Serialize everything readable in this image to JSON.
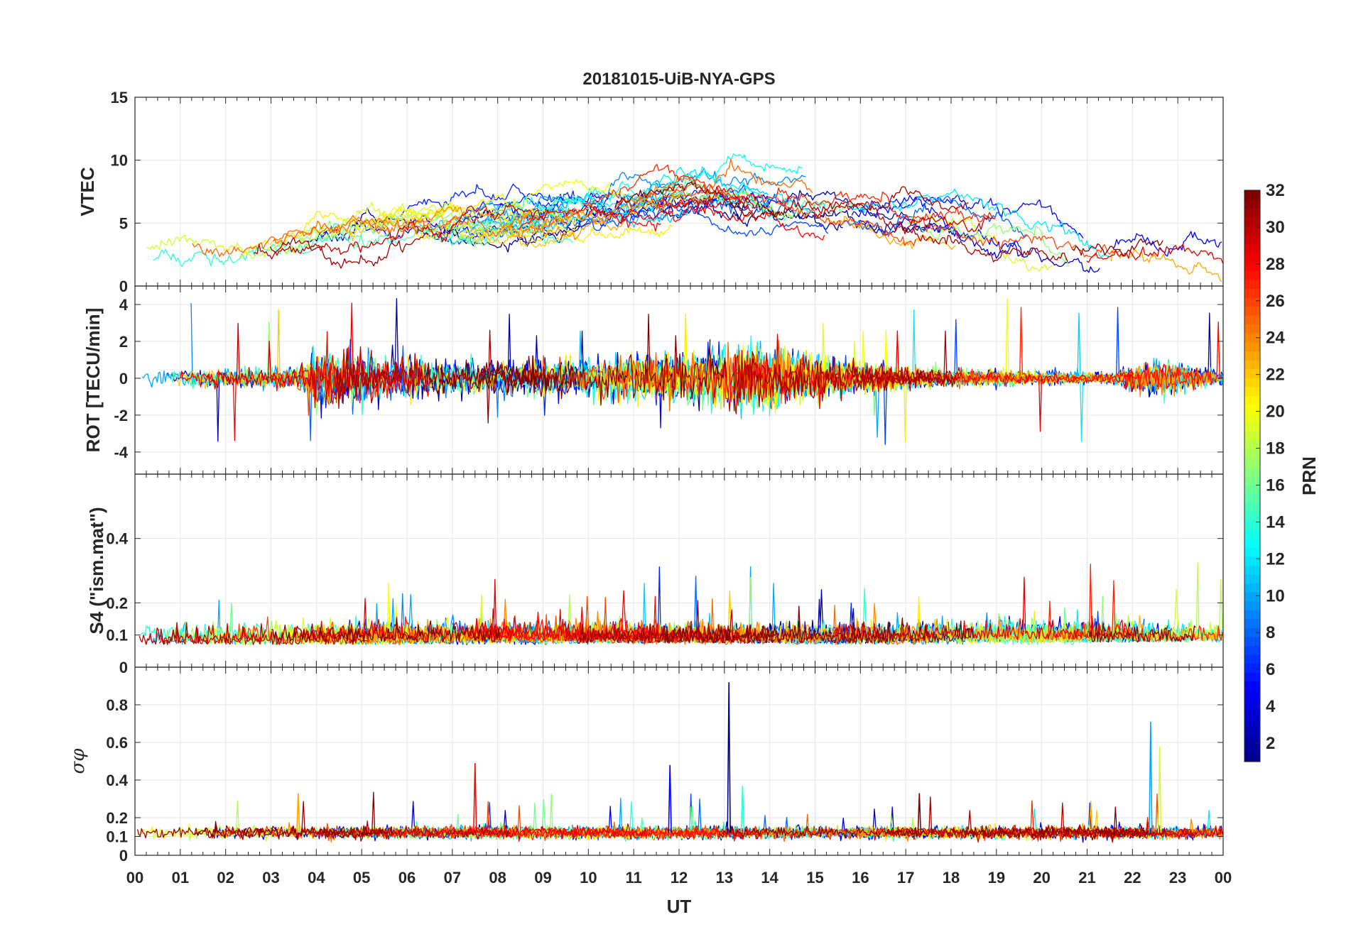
{
  "chart_data": {
    "type": "line",
    "title": "20181015-UiB-NYA-GPS",
    "xlabel": "UT",
    "x_tick_labels": [
      "00",
      "01",
      "02",
      "03",
      "04",
      "05",
      "06",
      "07",
      "08",
      "09",
      "10",
      "11",
      "12",
      "13",
      "14",
      "15",
      "16",
      "17",
      "18",
      "19",
      "20",
      "21",
      "22",
      "23",
      "00"
    ],
    "x_range_hours": [
      0,
      24
    ],
    "panels": [
      {
        "name": "VTEC",
        "ylabel": "VTEC",
        "ylim": [
          0,
          15
        ],
        "yticks": [
          0,
          5,
          10,
          15
        ],
        "tick_labels": [
          "0",
          "5",
          "10",
          "15"
        ],
        "profile_hours": [
          0,
          2,
          4,
          6,
          8,
          10,
          11.5,
          12.5,
          13.5,
          15,
          16.5,
          18,
          19.5,
          21,
          22.5,
          24
        ],
        "profile_values": [
          2.8,
          2.9,
          3.8,
          4.6,
          5.0,
          5.9,
          6.5,
          7.0,
          6.6,
          5.9,
          5.0,
          4.6,
          3.6,
          2.2,
          2.8,
          2.6
        ]
      },
      {
        "name": "ROT",
        "ylabel": "ROT [TECU/min]",
        "ylim": [
          -5.2,
          5
        ],
        "yticks": [
          -4,
          -2,
          0,
          2,
          4
        ],
        "tick_labels": [
          "-4",
          "-2",
          "0",
          "2",
          "4"
        ],
        "noise_profile_hours": [
          0,
          3.5,
          4,
          6.5,
          8,
          11.5,
          13.5,
          15,
          17,
          21.5,
          22.5,
          24
        ],
        "noise_profile_values": [
          0.2,
          0.25,
          0.8,
          0.45,
          0.4,
          0.55,
          0.8,
          0.5,
          0.25,
          0.12,
          0.45,
          0.15
        ]
      },
      {
        "name": "S4",
        "ylabel": "S4 (\"ism.mat\")",
        "ylim": [
          0,
          0.6
        ],
        "yticks": [
          0,
          0.1,
          0.2,
          0.4
        ],
        "tick_labels": [
          "0",
          "0.1",
          "0.2",
          "0.4"
        ],
        "baseline_value": 0.07
      },
      {
        "name": "sigma_phi",
        "ylabel": "σφ",
        "ylim": [
          0,
          1
        ],
        "yticks": [
          0,
          0.1,
          0.2,
          0.4,
          0.6,
          0.8
        ],
        "tick_labels": [
          "0",
          "0.1",
          "0.2",
          "0.4",
          "0.6",
          "0.8"
        ],
        "baseline_value": 0.12,
        "spikes": [
          {
            "hour": 13.1,
            "value": 0.92
          },
          {
            "hour": 22.4,
            "value": 0.71
          },
          {
            "hour": 22.6,
            "value": 0.58
          },
          {
            "hour": 7.5,
            "value": 0.49
          },
          {
            "hour": 11.8,
            "value": 0.48
          },
          {
            "hour": 13.4,
            "value": 0.37
          },
          {
            "hour": 3.6,
            "value": 0.33
          },
          {
            "hour": 17.3,
            "value": 0.33
          }
        ]
      }
    ],
    "colorbar": {
      "label": "PRN",
      "range": [
        1,
        32
      ],
      "ticks": [
        "2",
        "4",
        "6",
        "8",
        "10",
        "12",
        "14",
        "16",
        "18",
        "20",
        "22",
        "24",
        "26",
        "28",
        "30",
        "32"
      ],
      "colormap": "jet",
      "colors": [
        "#00008f",
        "#0000ff",
        "#0080ff",
        "#00ffff",
        "#80ff80",
        "#ffff00",
        "#ff8000",
        "#ff0000",
        "#800000"
      ]
    },
    "series_count": 32
  }
}
